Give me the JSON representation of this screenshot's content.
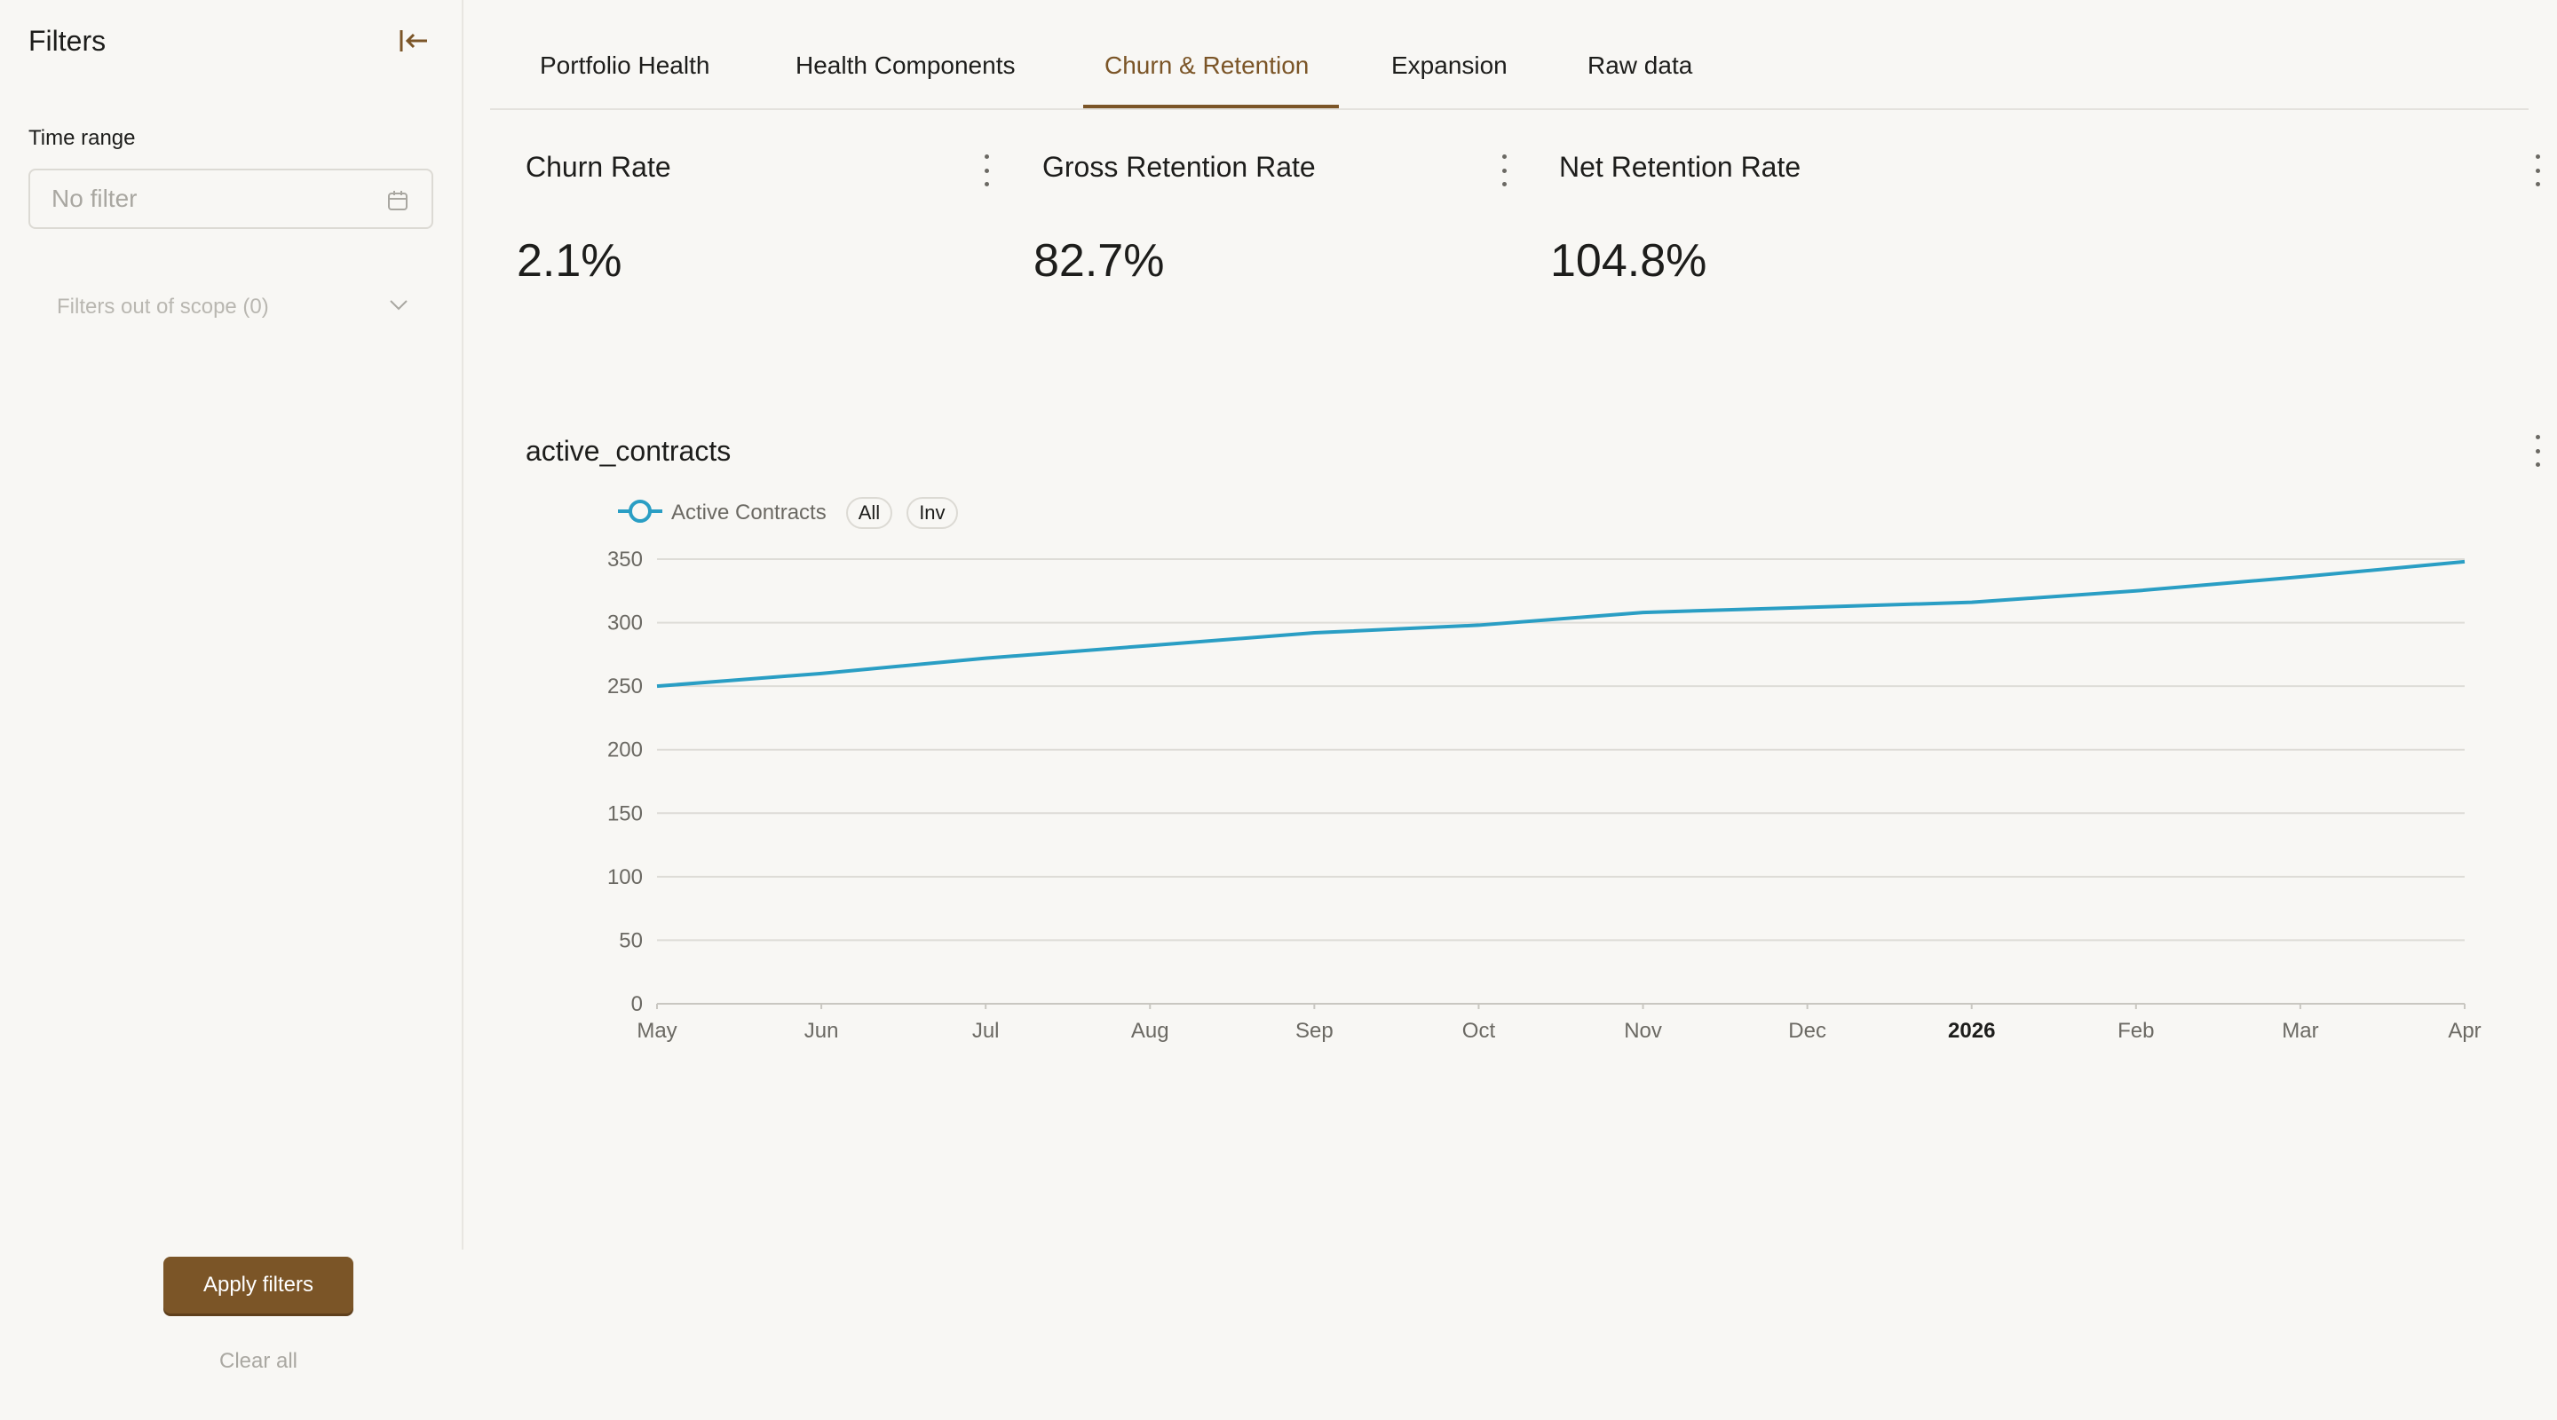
{
  "sidebar": {
    "title": "Filters",
    "time_range": {
      "label": "Time range",
      "placeholder": "No filter"
    },
    "out_of_scope": "Filters out of scope (0)",
    "apply_label": "Apply filters",
    "clear_label": "Clear all"
  },
  "tabs": [
    {
      "label": "Portfolio Health",
      "active": false
    },
    {
      "label": "Health Components",
      "active": false
    },
    {
      "label": "Churn & Retention",
      "active": true
    },
    {
      "label": "Expansion",
      "active": false
    },
    {
      "label": "Raw data",
      "active": false
    }
  ],
  "kpis": [
    {
      "title": "Churn Rate",
      "value": "2.1%"
    },
    {
      "title": "Gross Retention Rate",
      "value": "82.7%"
    },
    {
      "title": "Net Retention Rate",
      "value": "104.8%"
    }
  ],
  "chart": {
    "title": "active_contracts",
    "legend_label": "Active Contracts",
    "pill_all": "All",
    "pill_inv": "Inv"
  },
  "colors": {
    "accent": "#7b5527",
    "series": "#2a9ec4",
    "background": "#f8f7f4"
  },
  "chart_data": {
    "type": "line",
    "title": "active_contracts",
    "categories": [
      "May",
      "Jun",
      "Jul",
      "Aug",
      "Sep",
      "Oct",
      "Nov",
      "Dec",
      "2026",
      "Feb",
      "Mar",
      "Apr"
    ],
    "series": [
      {
        "name": "Active Contracts",
        "values": [
          250,
          260,
          272,
          282,
          292,
          298,
          308,
          312,
          316,
          325,
          336,
          348
        ]
      }
    ],
    "y_ticks": [
      0,
      50,
      100,
      150,
      200,
      250,
      300,
      350
    ],
    "ylim": [
      0,
      350
    ],
    "bold_ticks": [
      "2026"
    ],
    "grid": true,
    "legend_position": "top-left"
  }
}
